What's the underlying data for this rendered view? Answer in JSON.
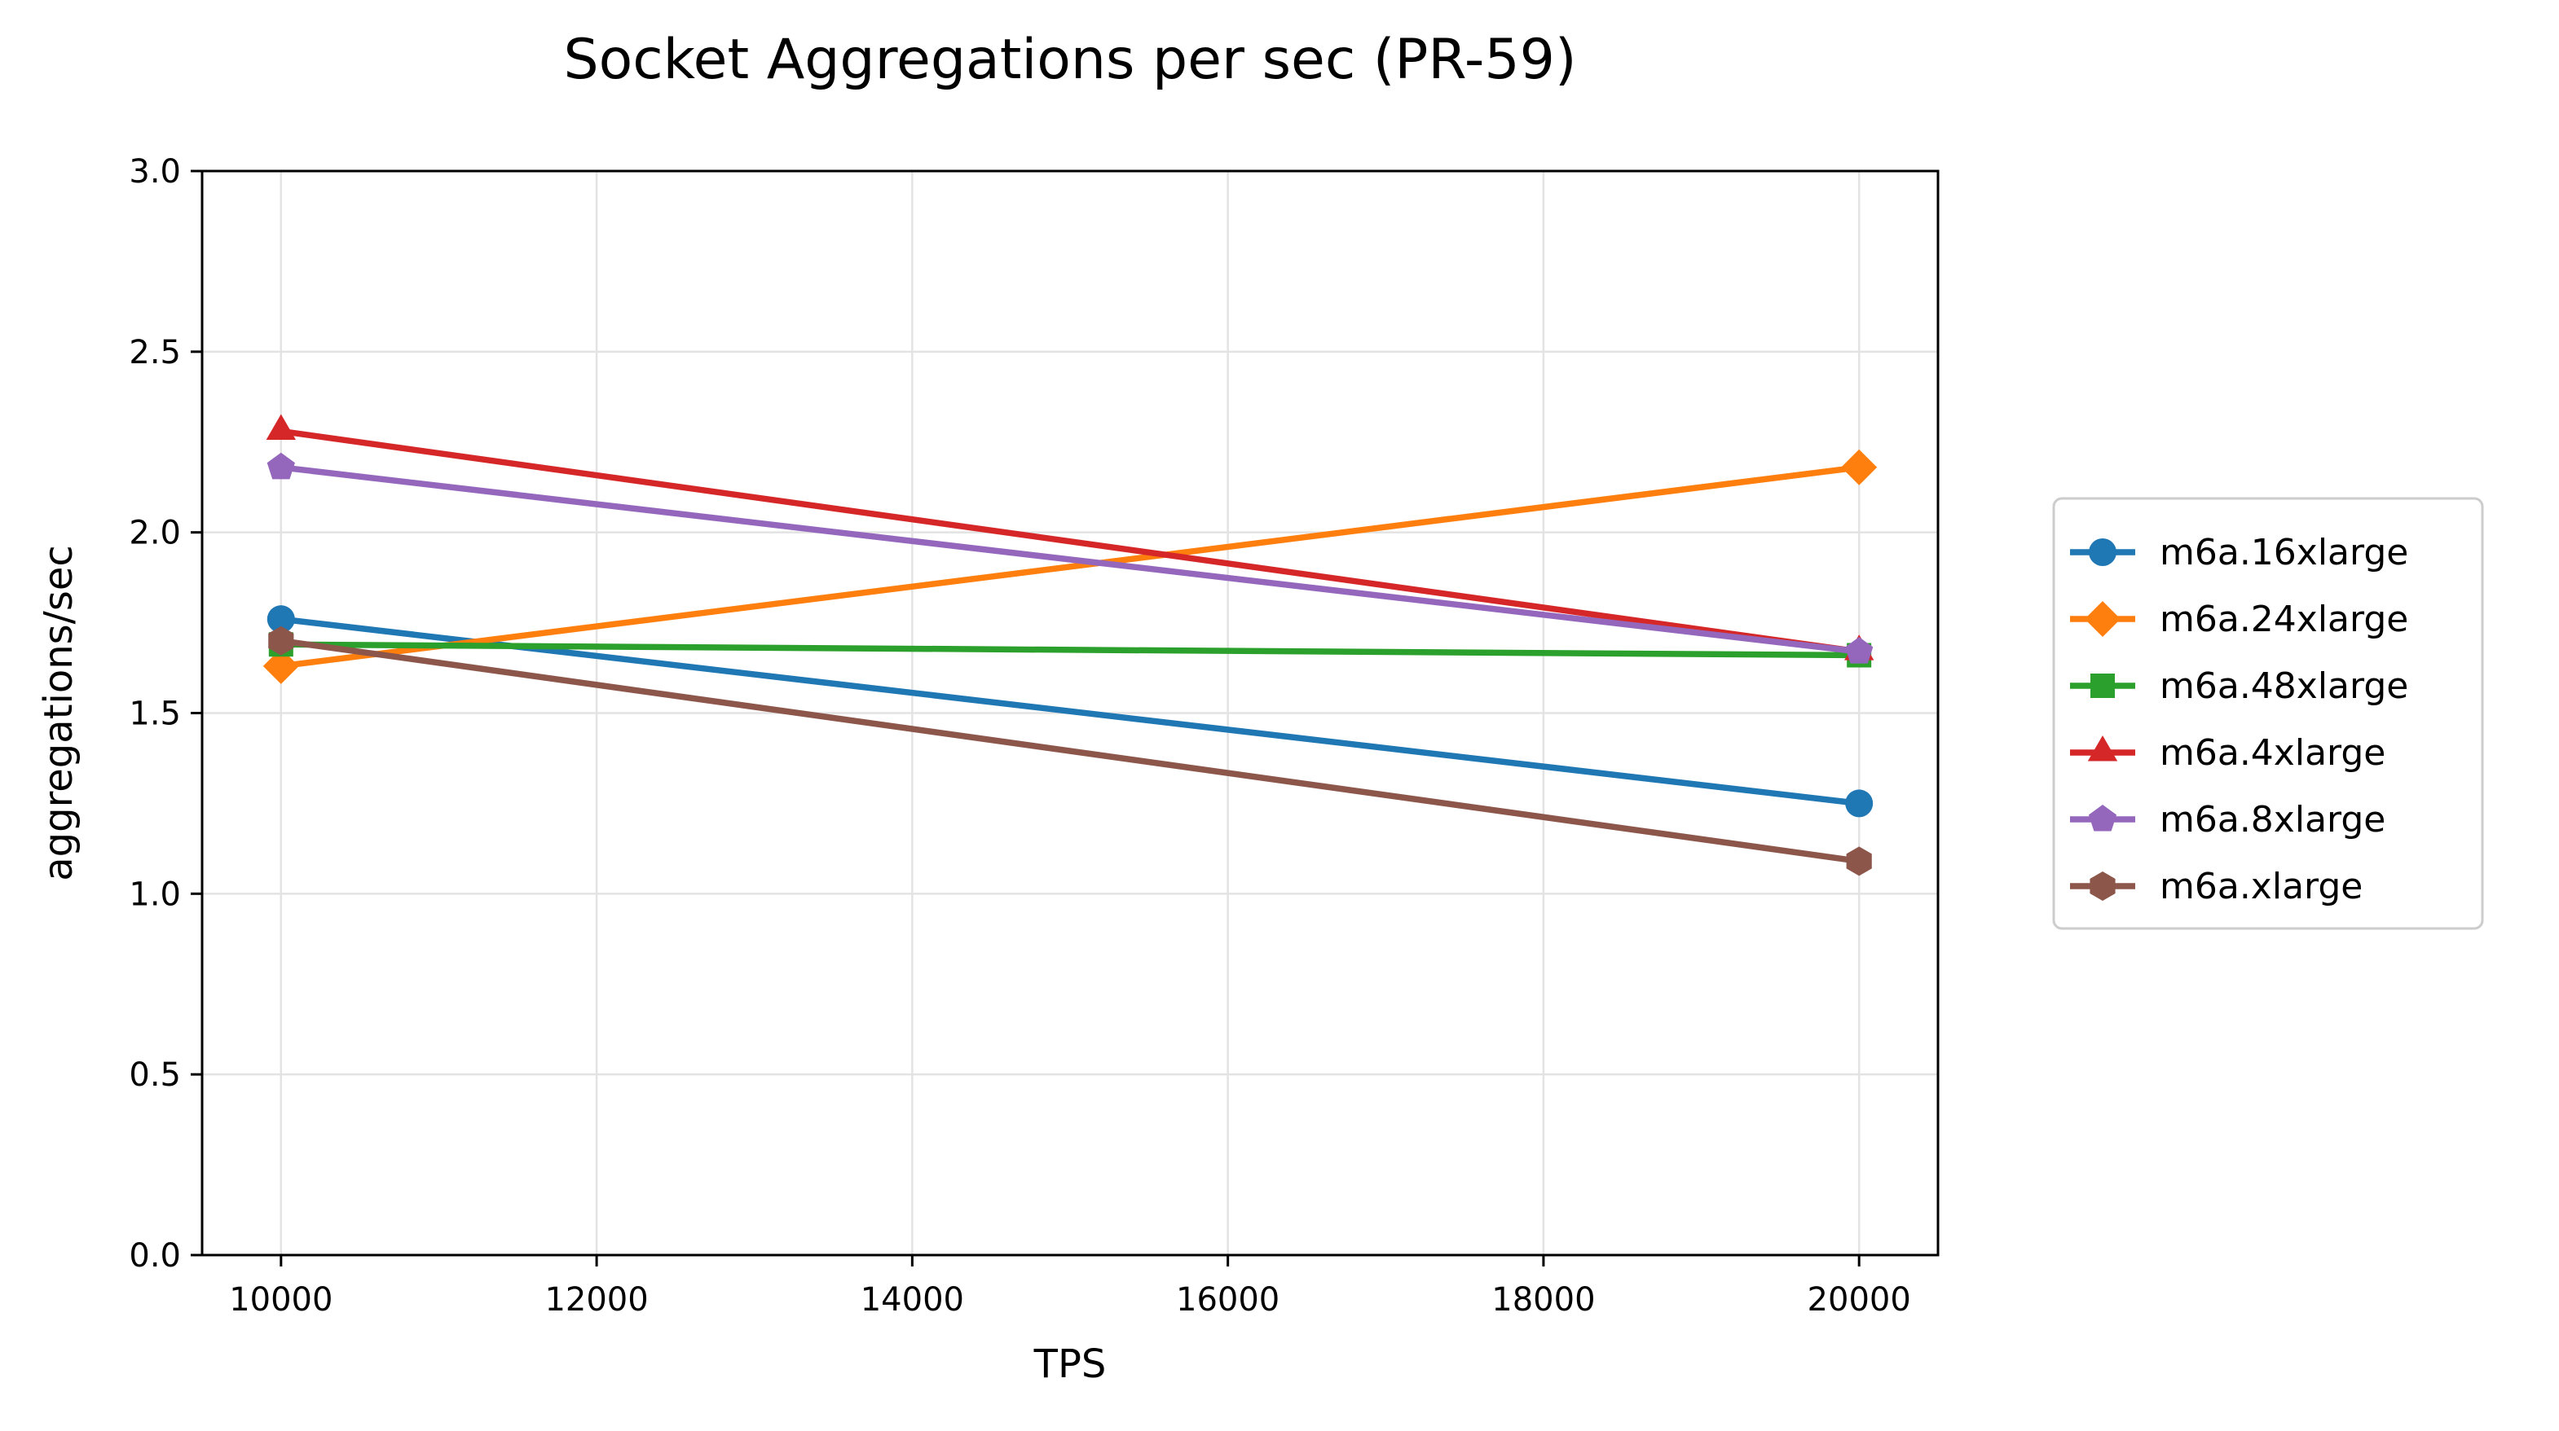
{
  "chart_data": {
    "type": "line",
    "title": "Socket Aggregations per sec (PR-59)",
    "xlabel": "TPS",
    "ylabel": "aggregations/sec",
    "xlim": [
      9500,
      20500
    ],
    "ylim": [
      0.0,
      3.0
    ],
    "xticks": [
      10000,
      12000,
      14000,
      16000,
      18000,
      20000
    ],
    "yticks": [
      0.0,
      0.5,
      1.0,
      1.5,
      2.0,
      2.5,
      3.0
    ],
    "xtick_labels": [
      "10000",
      "12000",
      "14000",
      "16000",
      "18000",
      "20000"
    ],
    "ytick_labels": [
      "0.0",
      "0.5",
      "1.0",
      "1.5",
      "2.0",
      "2.5",
      "3.0"
    ],
    "grid": true,
    "legend_position": "outside-right",
    "x": [
      10000,
      20000
    ],
    "series": [
      {
        "name": "m6a.16xlarge",
        "values": [
          1.76,
          1.25
        ],
        "color": "#1f77b4",
        "marker": "circle"
      },
      {
        "name": "m6a.24xlarge",
        "values": [
          1.63,
          2.18
        ],
        "color": "#ff7f0e",
        "marker": "diamond"
      },
      {
        "name": "m6a.48xlarge",
        "values": [
          1.69,
          1.66
        ],
        "color": "#2ca02c",
        "marker": "square"
      },
      {
        "name": "m6a.4xlarge",
        "values": [
          2.28,
          1.67
        ],
        "color": "#d62728",
        "marker": "triangle"
      },
      {
        "name": "m6a.8xlarge",
        "values": [
          2.18,
          1.67
        ],
        "color": "#9467bd",
        "marker": "pentagon"
      },
      {
        "name": "m6a.xlarge",
        "values": [
          1.7,
          1.09
        ],
        "color": "#8c564b",
        "marker": "hexagon"
      }
    ]
  }
}
